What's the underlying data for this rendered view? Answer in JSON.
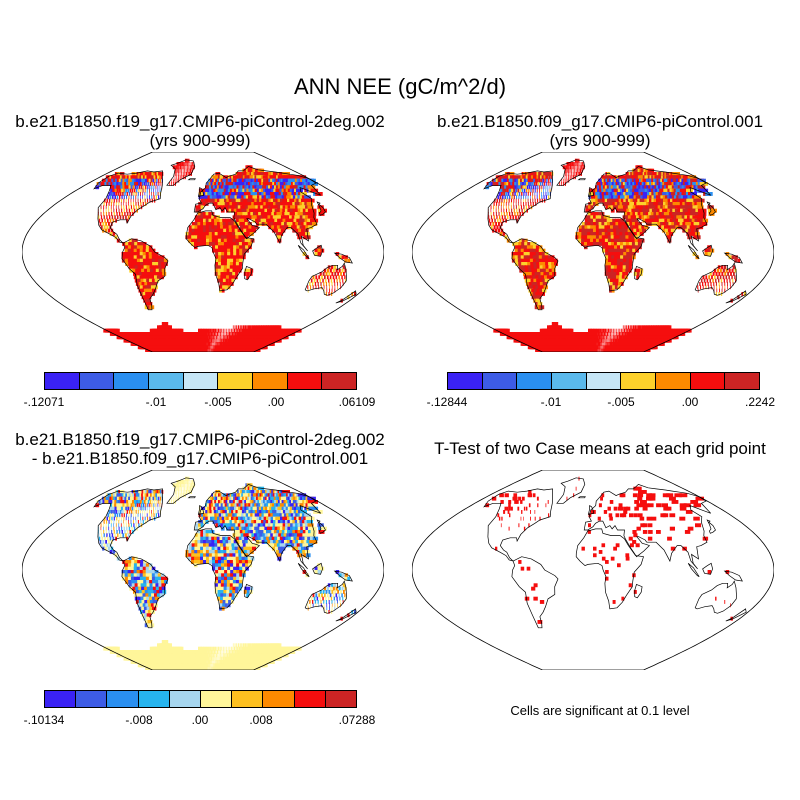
{
  "title": "ANN NEE (gC/m^2/d)",
  "panels": [
    {
      "title_line1": "b.e21.B1850.f19_g17.CMIP6-piControl-2deg.002",
      "title_line2": "(yrs 900-999)",
      "colorbar": {
        "colors": [
          "#3a22f5",
          "#3d5ce6",
          "#2a8ff0",
          "#5ab9ec",
          "#c6e6f6",
          "#fdd12b",
          "#fd8a00",
          "#f50e0e",
          "#cc2424"
        ],
        "labels": [
          "-.12071",
          "-.01",
          "-.005",
          ".00",
          ".06109"
        ]
      },
      "palette": [
        "#3a22f5",
        "#3d5ce6",
        "#2a8ff0",
        "#5ab9ec",
        "#fdd12b",
        "#fd8a00",
        "#f50e0e",
        "#f50e0e",
        "#cc2424",
        "#f50e0e"
      ]
    },
    {
      "title_line1": "b.e21.B1850.f09_g17.CMIP6-piControl.001",
      "title_line2": "(yrs 900-999)",
      "colorbar": {
        "colors": [
          "#3a22f5",
          "#3d5ce6",
          "#2a8ff0",
          "#5ab9ec",
          "#c6e6f6",
          "#fdd12b",
          "#fd8a00",
          "#f50e0e",
          "#cc2424"
        ],
        "labels": [
          "-.12844",
          "-.01",
          "-.005",
          ".00",
          ".2242"
        ]
      },
      "palette": [
        "#3a22f5",
        "#3d5ce6",
        "#2a8ff0",
        "#5ab9ec",
        "#fdd12b",
        "#fd8a00",
        "#f50e0e",
        "#cc2424",
        "#cc2424",
        "#f50e0e"
      ]
    },
    {
      "title_line1": "b.e21.B1850.f19_g17.CMIP6-piControl-2deg.002",
      "title_line2": "- b.e21.B1850.f09_g17.CMIP6-piControl.001",
      "colorbar": {
        "colors": [
          "#3a22f5",
          "#3d5ce6",
          "#2a8ff0",
          "#26b4ee",
          "#a6d6ef",
          "#fff69a",
          "#fdc020",
          "#fd8a00",
          "#f50e0e",
          "#cc2424"
        ],
        "labels": [
          "-.10134",
          "-.008",
          ".00",
          ".008",
          ".07288"
        ]
      },
      "palette": [
        "#3a22f5",
        "#3d5ce6",
        "#2a8ff0",
        "#26b4ee",
        "#a6d6ef",
        "#fff69a",
        "#fff69a",
        "#fdc020",
        "#fd8a00",
        "#f50e0e"
      ]
    },
    {
      "title_line1": "T-Test of two Case means at each grid point",
      "note": "Cells are significant at 0.1 level",
      "marker_color": "#f50e0e"
    }
  ]
}
